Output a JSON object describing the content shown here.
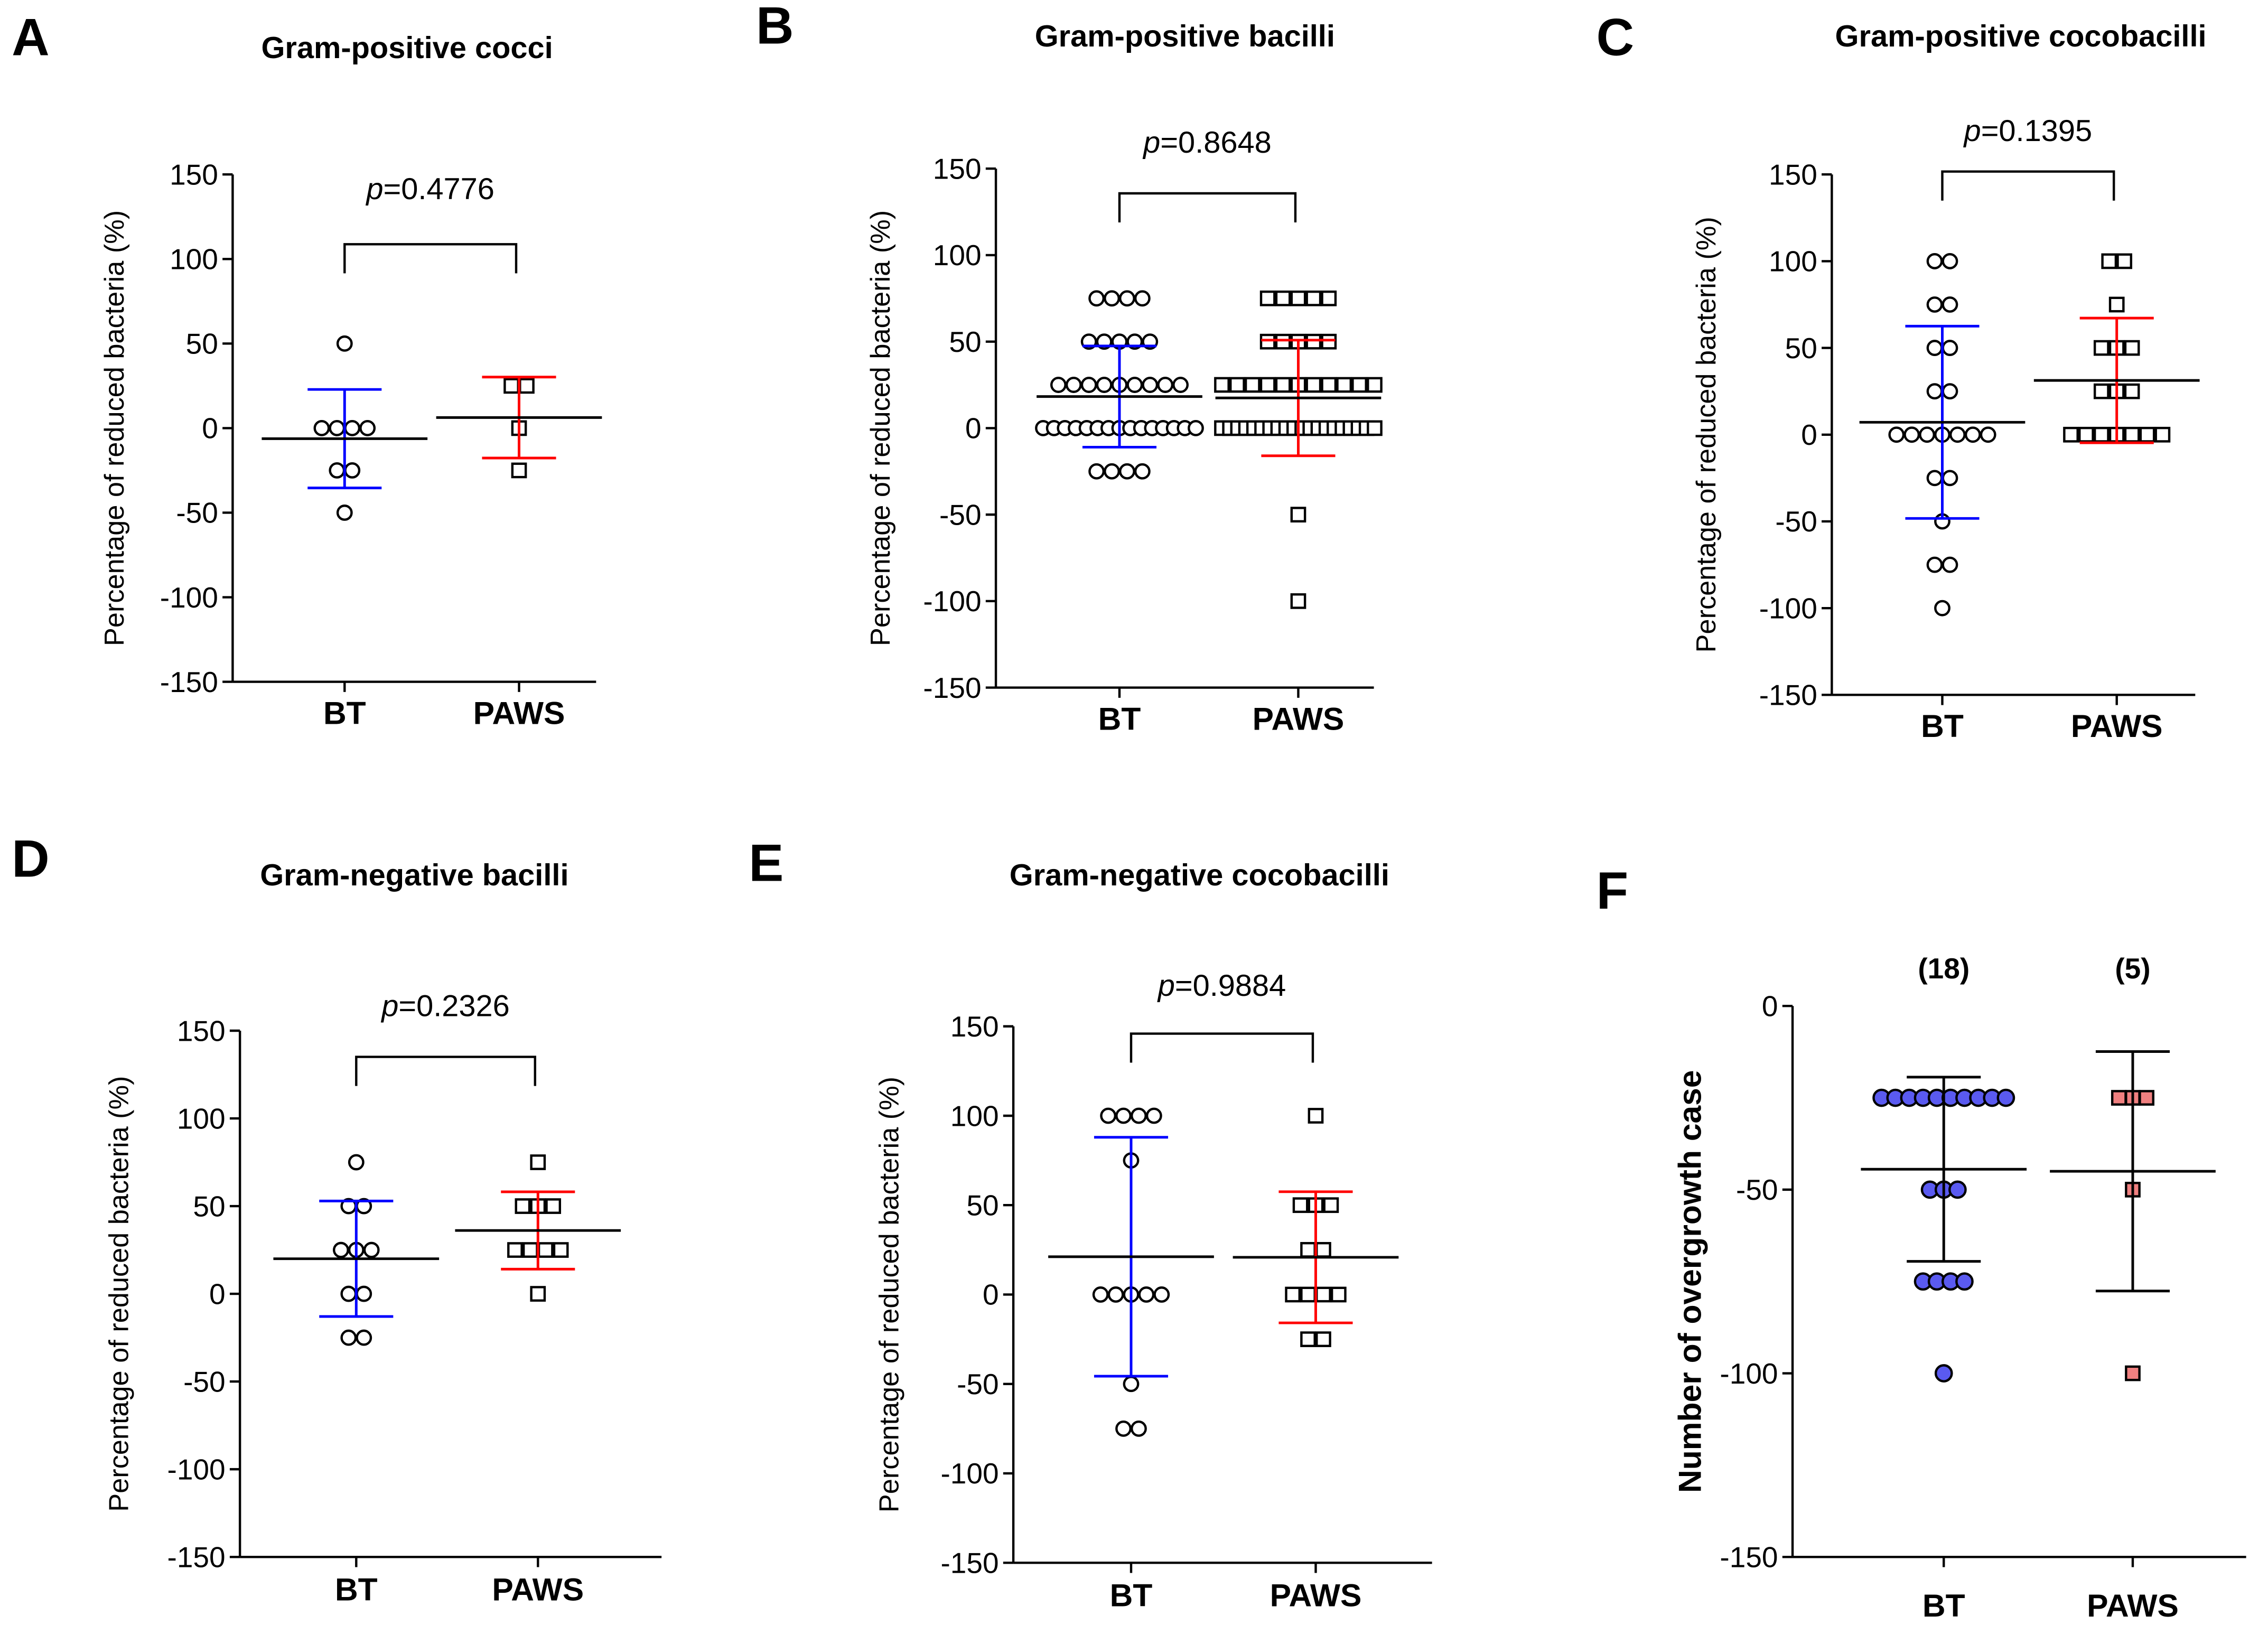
{
  "colors": {
    "bt": "#0000ff",
    "paws": "#ff0000",
    "bt_fill": "#5a5af0",
    "paws_fill": "#f08080",
    "black": "#000000"
  },
  "chart_data": [
    {
      "panel": "A",
      "type": "scatter",
      "title": "Gram-positive cocci",
      "ylabel": "Percentage of reduced bacteria (%)",
      "ylim": [
        -150,
        150
      ],
      "yticks": [
        150,
        100,
        50,
        0,
        -50,
        -100,
        -150
      ],
      "categories": [
        "BT",
        "PAWS"
      ],
      "p_symbol": "p",
      "p_value": "=0.4776",
      "summary": "mean ± SD",
      "series": [
        {
          "name": "BT",
          "marker": "open-circle",
          "values": [
            50,
            0,
            0,
            0,
            0,
            -25,
            -25,
            -50
          ]
        },
        {
          "name": "PAWS",
          "marker": "open-square",
          "values": [
            25,
            25,
            0,
            -25
          ]
        }
      ]
    },
    {
      "panel": "B",
      "type": "scatter",
      "title": "Gram-positive bacilli",
      "ylabel": "Percentage of reduced bacteria (%)",
      "ylim": [
        -150,
        150
      ],
      "yticks": [
        150,
        100,
        50,
        0,
        -50,
        -100,
        -150
      ],
      "categories": [
        "BT",
        "PAWS"
      ],
      "p_symbol": "p",
      "p_value": "=0.8648",
      "summary": "mean ± SD",
      "series": [
        {
          "name": "BT",
          "marker": "open-circle",
          "values": [
            75,
            75,
            75,
            75,
            50,
            50,
            50,
            50,
            50,
            25,
            25,
            25,
            25,
            25,
            25,
            25,
            25,
            25,
            0,
            0,
            0,
            0,
            0,
            0,
            0,
            0,
            0,
            0,
            0,
            0,
            0,
            0,
            0,
            -25,
            -25,
            -25,
            -25
          ]
        },
        {
          "name": "PAWS",
          "marker": "open-square",
          "values": [
            75,
            75,
            75,
            75,
            75,
            50,
            50,
            50,
            50,
            50,
            25,
            25,
            25,
            25,
            25,
            25,
            25,
            25,
            25,
            25,
            25,
            0,
            0,
            0,
            0,
            0,
            0,
            0,
            0,
            0,
            0,
            0,
            0,
            0,
            0,
            0,
            0,
            0,
            0,
            0,
            0,
            -50,
            -100
          ]
        }
      ]
    },
    {
      "panel": "C",
      "type": "scatter",
      "title": "Gram-positive cocobacilli",
      "ylabel": "Percentage of reduced bacteria (%)",
      "ylim": [
        -150,
        150
      ],
      "yticks": [
        150,
        100,
        50,
        0,
        -50,
        -100,
        -150
      ],
      "categories": [
        "BT",
        "PAWS"
      ],
      "p_symbol": "p",
      "p_value": "=0.1395",
      "summary": "mean ± SD",
      "series": [
        {
          "name": "BT",
          "marker": "open-circle",
          "values": [
            100,
            100,
            75,
            75,
            50,
            50,
            25,
            25,
            0,
            0,
            0,
            0,
            0,
            0,
            0,
            -25,
            -25,
            -50,
            -75,
            -75,
            -100
          ]
        },
        {
          "name": "PAWS",
          "marker": "open-square",
          "values": [
            100,
            100,
            75,
            50,
            50,
            50,
            25,
            25,
            25,
            0,
            0,
            0,
            0,
            0,
            0,
            0
          ]
        }
      ]
    },
    {
      "panel": "D",
      "type": "scatter",
      "title": "Gram-negative bacilli",
      "ylabel": "Percentage of reduced bacteria (%)",
      "ylim": [
        -150,
        150
      ],
      "yticks": [
        150,
        100,
        50,
        0,
        -50,
        -100,
        -150
      ],
      "categories": [
        "BT",
        "PAWS"
      ],
      "p_symbol": "p",
      "p_value": "=0.2326",
      "summary": "mean ± SD",
      "series": [
        {
          "name": "BT",
          "marker": "open-circle",
          "values": [
            75,
            50,
            50,
            25,
            25,
            25,
            0,
            0,
            -25,
            -25
          ]
        },
        {
          "name": "PAWS",
          "marker": "open-square",
          "values": [
            75,
            50,
            50,
            50,
            25,
            25,
            25,
            25,
            0
          ]
        }
      ]
    },
    {
      "panel": "E",
      "type": "scatter",
      "title": "Gram-negative cocobacilli",
      "ylabel": "Percentage of reduced bacteria (%)",
      "ylim": [
        -150,
        150
      ],
      "yticks": [
        150,
        100,
        50,
        0,
        -50,
        -100,
        -150
      ],
      "categories": [
        "BT",
        "PAWS"
      ],
      "p_symbol": "p",
      "p_value": "=0.9884",
      "summary": "mean ± SD",
      "series": [
        {
          "name": "BT",
          "marker": "open-circle",
          "values": [
            100,
            100,
            100,
            100,
            75,
            0,
            0,
            0,
            0,
            0,
            -50,
            -75,
            -75
          ]
        },
        {
          "name": "PAWS",
          "marker": "open-square",
          "values": [
            100,
            50,
            50,
            50,
            25,
            25,
            0,
            0,
            0,
            0,
            -25,
            -25
          ]
        }
      ]
    },
    {
      "panel": "F",
      "type": "scatter",
      "title": "",
      "ylabel": "Number of overgrowth case",
      "ylim": [
        -150,
        0
      ],
      "yticks": [
        0,
        -50,
        -100,
        -150
      ],
      "categories": [
        "BT",
        "PAWS"
      ],
      "counts": [
        "(18)",
        "(5)"
      ],
      "summary": "mean ± SD",
      "series": [
        {
          "name": "BT",
          "marker": "filled-circle",
          "values": [
            -25,
            -25,
            -25,
            -25,
            -25,
            -25,
            -25,
            -25,
            -25,
            -25,
            -50,
            -50,
            -50,
            -75,
            -75,
            -75,
            -75,
            -100
          ]
        },
        {
          "name": "PAWS",
          "marker": "filled-square",
          "values": [
            -25,
            -25,
            -25,
            -50,
            -100
          ]
        }
      ]
    }
  ]
}
